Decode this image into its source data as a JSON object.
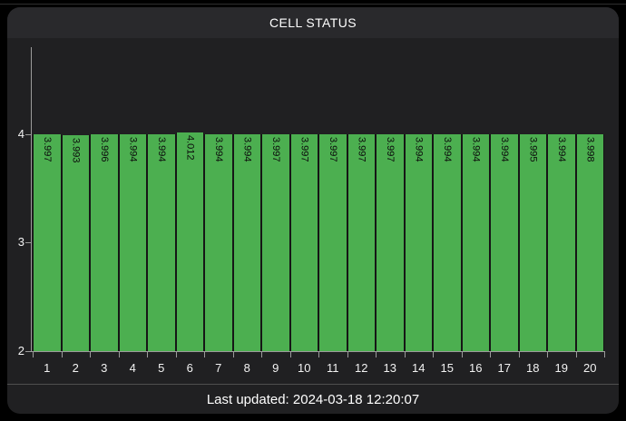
{
  "header": {
    "title": "CELL STATUS"
  },
  "footer": {
    "last_updated": "Last updated: 2024-03-18 12:20:07"
  },
  "colors": {
    "background": "#000000",
    "card_background": "#202022",
    "header_background": "#29292c",
    "bar_fill": "#4caf50",
    "bar_value_text": "#0c0c0c",
    "axis": "#9b9b9b",
    "axis_text": "#f2f2f2",
    "divider": "#4f4f4f",
    "footer_text": "#ffffff"
  },
  "chart_data": {
    "type": "bar",
    "title": "CELL STATUS",
    "categories": [
      "1",
      "2",
      "3",
      "4",
      "5",
      "6",
      "7",
      "8",
      "9",
      "10",
      "11",
      "12",
      "13",
      "14",
      "15",
      "16",
      "17",
      "18",
      "19",
      "20"
    ],
    "values": [
      3.997,
      3.993,
      3.996,
      3.994,
      3.994,
      4.012,
      3.994,
      3.994,
      3.997,
      3.997,
      3.997,
      3.997,
      3.997,
      3.994,
      3.994,
      3.994,
      3.994,
      3.995,
      3.994,
      3.998
    ],
    "value_label_decimals": 3,
    "xlabel": "",
    "ylabel": "",
    "ylim": [
      2,
      4.8
    ],
    "yticks": [
      2,
      3,
      4
    ],
    "grid": false,
    "legend_position": "none",
    "subtitle": "Last updated: 2024-03-18 12:20:07"
  }
}
